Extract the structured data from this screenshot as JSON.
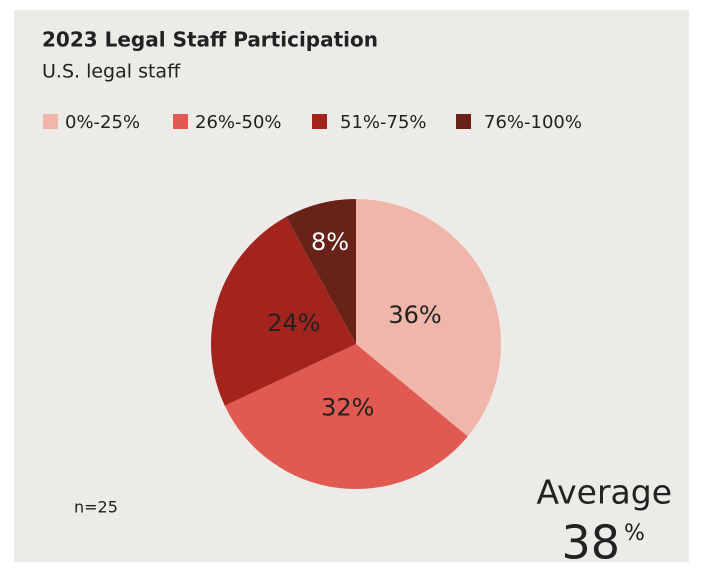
{
  "chart_data": {
    "type": "pie",
    "title": "2023 Legal Staff Participation",
    "subtitle": "U.S. legal staff",
    "categories": [
      "0%-25%",
      "26%-50%",
      "51%-75%",
      "76%-100%"
    ],
    "values": [
      36,
      32,
      24,
      8
    ],
    "value_labels": [
      "36%",
      "32%",
      "24%",
      "8%"
    ],
    "colors": [
      "#f0b6a9",
      "#e05a52",
      "#a3241c",
      "#692218"
    ],
    "legend": "top",
    "note": "n=25",
    "average_label": "Average",
    "average_value": 38,
    "average_unit": "%"
  }
}
